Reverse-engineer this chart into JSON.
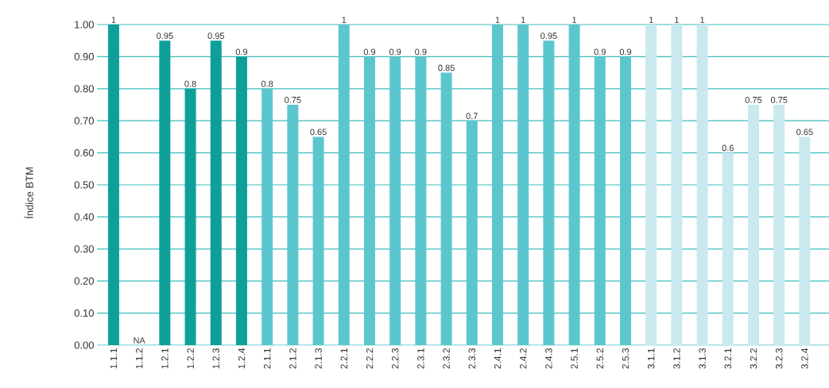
{
  "chart_data": {
    "type": "bar",
    "ylabel": "Índice BTM",
    "categories": [
      "1.1.1",
      "1.1.2",
      "1.2.1",
      "1.2.2",
      "1.2.3",
      "1.2.4",
      "2.1.1",
      "2.1.2",
      "2.1.3",
      "2.2.1",
      "2.2.2",
      "2.2.3",
      "2.3.1",
      "2.3.2",
      "2.3.3",
      "2.4.1",
      "2.4.2",
      "2.4.3",
      "2.5.1",
      "2.5.2",
      "2.5.3",
      "3.1.1",
      "3.1.2",
      "3.1.3",
      "3.2.1",
      "3.2.2",
      "3.2.3",
      "3.2.4"
    ],
    "values": [
      1,
      null,
      0.95,
      0.8,
      0.95,
      0.9,
      0.8,
      0.75,
      0.65,
      1,
      0.9,
      0.9,
      0.9,
      0.85,
      0.7,
      1,
      1,
      0.95,
      1,
      0.9,
      0.9,
      1,
      1,
      1,
      0.6,
      0.75,
      0.75,
      0.65
    ],
    "value_labels": [
      "1",
      "NA",
      "0.95",
      "0.8",
      "0.95",
      "0.9",
      "0.8",
      "0.75",
      "0.65",
      "1",
      "0.9",
      "0.9",
      "0.9",
      "0.85",
      "0.7",
      "1",
      "1",
      "0.95",
      "1",
      "0.9",
      "0.9",
      "1",
      "1",
      "1",
      "0.6",
      "0.75",
      "0.75",
      "0.65"
    ],
    "colors": [
      "#0e9f9b",
      "#0e9f9b",
      "#0e9f9b",
      "#0e9f9b",
      "#0e9f9b",
      "#0e9f9b",
      "#5cc6cf",
      "#5cc6cf",
      "#5cc6cf",
      "#5cc6cf",
      "#5cc6cf",
      "#5cc6cf",
      "#5cc6cf",
      "#5cc6cf",
      "#5cc6cf",
      "#5cc6cf",
      "#5cc6cf",
      "#5cc6cf",
      "#5cc6cf",
      "#5cc6cf",
      "#5cc6cf",
      "#c9e9ee",
      "#c9e9ee",
      "#c9e9ee",
      "#c9e9ee",
      "#c9e9ee",
      "#c9e9ee",
      "#c9e9ee"
    ],
    "ylim": [
      0,
      1
    ],
    "yticks": [
      {
        "value": 0,
        "label": "0.00"
      },
      {
        "value": 0.1,
        "label": "0.10"
      },
      {
        "value": 0.2,
        "label": "0.20"
      },
      {
        "value": 0.3,
        "label": "0.30"
      },
      {
        "value": 0.4,
        "label": "0.40"
      },
      {
        "value": 0.5,
        "label": "0.50"
      },
      {
        "value": 0.6,
        "label": "0.60"
      },
      {
        "value": 0.7,
        "label": "0.70"
      },
      {
        "value": 0.8,
        "label": "0.80"
      },
      {
        "value": 0.9,
        "label": "0.90"
      },
      {
        "value": 1,
        "label": "1.00"
      }
    ],
    "grid": "y"
  }
}
